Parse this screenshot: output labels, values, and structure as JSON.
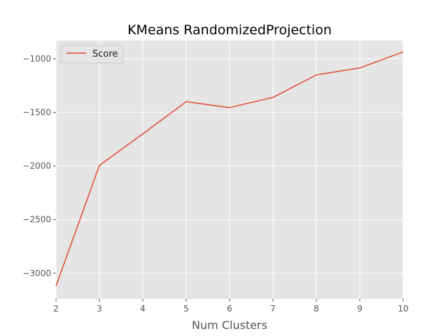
{
  "chart_data": {
    "type": "line",
    "title": "KMeans RandomizedProjection",
    "xlabel": "Num Clusters",
    "ylabel": "",
    "x": [
      2,
      3,
      4,
      5,
      6,
      7,
      8,
      9,
      10
    ],
    "series": [
      {
        "name": "Score",
        "color": "#E24A33",
        "values": [
          -3120,
          -1995,
          -1700,
          -1400,
          -1455,
          -1360,
          -1150,
          -1085,
          -935
        ]
      }
    ],
    "xlim": [
      2,
      10
    ],
    "ylim": [
      -3240,
      -830
    ],
    "xticks": [
      2,
      3,
      4,
      5,
      6,
      7,
      8,
      9,
      10
    ],
    "xtick_labels": [
      "2",
      "3",
      "4",
      "5",
      "6",
      "7",
      "8",
      "9",
      "10"
    ],
    "yticks": [
      -3000,
      -2500,
      -2000,
      -1500,
      -1000
    ],
    "ytick_labels": [
      "−3000",
      "−2500",
      "−2000",
      "−1500",
      "−1000"
    ],
    "grid": true,
    "legend_position": "top-left",
    "background_color": "#E5E5E5",
    "grid_color": "#FFFFFF"
  }
}
